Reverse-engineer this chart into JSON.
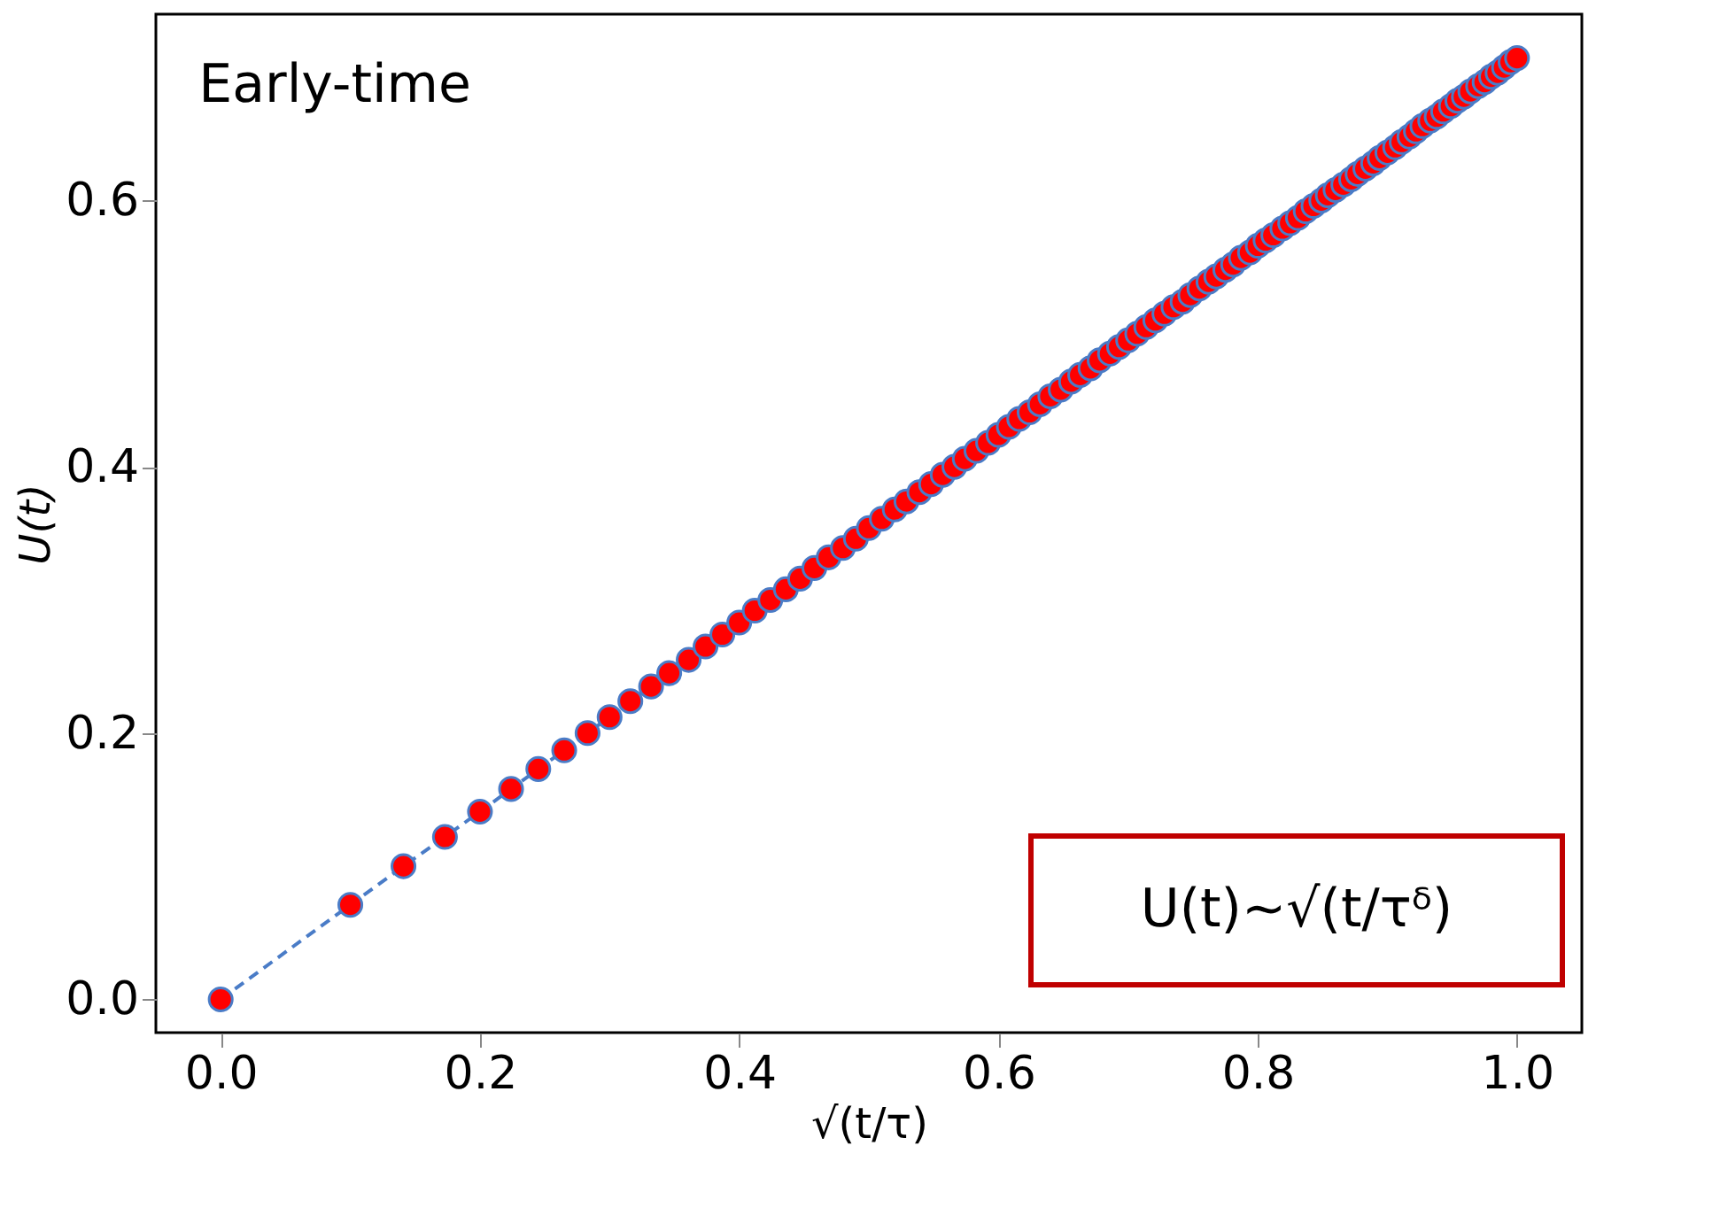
{
  "chart_data": {
    "type": "line",
    "xlabel": "√(t/τ)",
    "ylabel": "U(t)",
    "annotations": [
      "Early-time",
      "U(t)~√(t/τᵟ)"
    ],
    "xlim": [
      -0.05,
      1.05
    ],
    "ylim": [
      -0.025,
      0.74
    ],
    "xticks": [
      {
        "value": 0,
        "label": "0.0"
      },
      0.2,
      0.4,
      0.6,
      0.8,
      {
        "value": 1,
        "label": "1.0"
      }
    ],
    "yticks": [
      {
        "value": 0,
        "label": "0.0"
      },
      0.2,
      0.4,
      0.6
    ],
    "grid": false,
    "x": [
      0,
      0.1,
      0.141,
      0.173,
      0.2,
      0.224,
      0.245,
      0.265,
      0.283,
      0.3,
      0.316,
      0.332,
      0.346,
      0.361,
      0.374,
      0.387,
      0.4,
      0.412,
      0.424,
      0.436,
      0.447,
      0.458,
      0.469,
      0.48,
      0.49,
      0.5,
      0.51,
      0.52,
      0.529,
      0.539,
      0.548,
      0.557,
      0.566,
      0.574,
      0.583,
      0.592,
      0.6,
      0.608,
      0.616,
      0.624,
      0.632,
      0.64,
      0.648,
      0.656,
      0.663,
      0.671,
      0.678,
      0.686,
      0.693,
      0.7,
      0.707,
      0.714,
      0.721,
      0.728,
      0.735,
      0.742,
      0.748,
      0.755,
      0.762,
      0.768,
      0.775,
      0.781,
      0.787,
      0.794,
      0.8,
      0.806,
      0.812,
      0.819,
      0.825,
      0.831,
      0.837,
      0.843,
      0.849,
      0.854,
      0.86,
      0.866,
      0.872,
      0.877,
      0.883,
      0.889,
      0.894,
      0.9,
      0.906,
      0.911,
      0.917,
      0.922,
      0.927,
      0.933,
      0.938,
      0.943,
      0.949,
      0.954,
      0.959,
      0.964,
      0.97,
      0.975,
      0.98,
      0.985,
      0.99,
      0.995,
      1
    ],
    "series": [
      {
        "color": "#4a7cc7",
        "line_style": "dashed",
        "values": [
          0,
          0.071,
          0.1,
          0.122,
          0.141,
          0.158,
          0.173,
          0.187,
          0.2,
          0.212,
          0.224,
          0.235,
          0.245,
          0.255,
          0.265,
          0.274,
          0.283,
          0.292,
          0.3,
          0.308,
          0.316,
          0.324,
          0.332,
          0.339,
          0.346,
          0.354,
          0.361,
          0.368,
          0.374,
          0.381,
          0.387,
          0.394,
          0.4,
          0.406,
          0.412,
          0.418,
          0.424,
          0.43,
          0.436,
          0.441,
          0.447,
          0.453,
          0.458,
          0.464,
          0.469,
          0.474,
          0.48,
          0.485,
          0.49,
          0.495,
          0.5,
          0.505,
          0.51,
          0.515,
          0.52,
          0.524,
          0.529,
          0.534,
          0.539,
          0.543,
          0.548,
          0.552,
          0.557,
          0.561,
          0.566,
          0.57,
          0.574,
          0.579,
          0.583,
          0.587,
          0.592,
          0.596,
          0.6,
          0.604,
          0.608,
          0.612,
          0.616,
          0.62,
          0.624,
          0.628,
          0.632,
          0.636,
          0.64,
          0.644,
          0.648,
          0.652,
          0.656,
          0.66,
          0.663,
          0.667,
          0.671,
          0.675,
          0.678,
          0.682,
          0.686,
          0.689,
          0.693,
          0.696,
          0.7,
          0.704,
          0.707
        ]
      },
      {
        "type": "scatter",
        "color": "#ff0000",
        "marker": "circle",
        "values": [
          0,
          0.071,
          0.1,
          0.122,
          0.141,
          0.158,
          0.173,
          0.187,
          0.2,
          0.212,
          0.224,
          0.235,
          0.245,
          0.255,
          0.265,
          0.274,
          0.283,
          0.292,
          0.3,
          0.308,
          0.316,
          0.324,
          0.332,
          0.339,
          0.346,
          0.354,
          0.361,
          0.368,
          0.374,
          0.381,
          0.387,
          0.394,
          0.4,
          0.406,
          0.412,
          0.418,
          0.424,
          0.43,
          0.436,
          0.441,
          0.447,
          0.453,
          0.458,
          0.464,
          0.469,
          0.474,
          0.48,
          0.485,
          0.49,
          0.495,
          0.5,
          0.505,
          0.51,
          0.515,
          0.52,
          0.524,
          0.529,
          0.534,
          0.539,
          0.543,
          0.548,
          0.552,
          0.557,
          0.561,
          0.566,
          0.57,
          0.574,
          0.579,
          0.583,
          0.587,
          0.592,
          0.596,
          0.6,
          0.604,
          0.608,
          0.612,
          0.616,
          0.62,
          0.624,
          0.628,
          0.632,
          0.636,
          0.64,
          0.644,
          0.648,
          0.652,
          0.656,
          0.66,
          0.663,
          0.667,
          0.671,
          0.675,
          0.678,
          0.682,
          0.686,
          0.689,
          0.693,
          0.696,
          0.7,
          0.704,
          0.707
        ]
      }
    ]
  }
}
